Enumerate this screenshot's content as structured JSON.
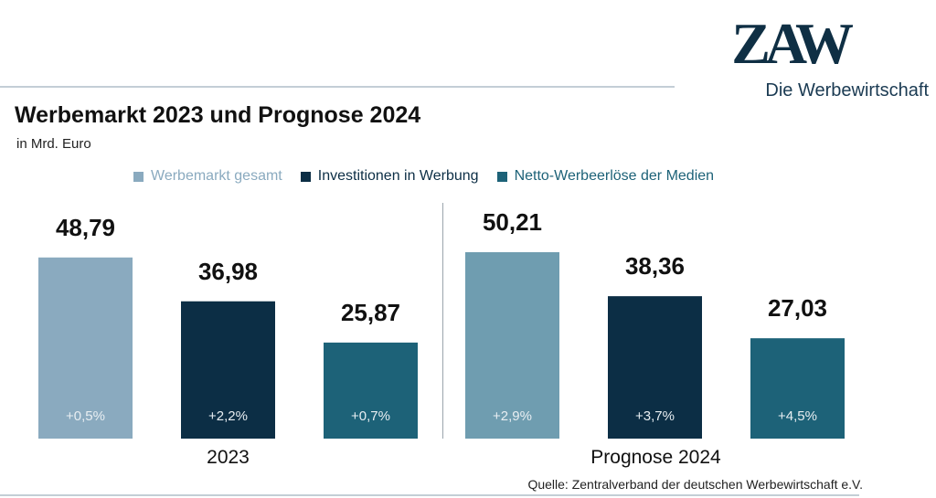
{
  "logo": {
    "text": "ZAW",
    "tagline": "Die Werbewirtschaft"
  },
  "header": {
    "title": "Werbemarkt 2023 und Prognose 2024",
    "subtitle": "in Mrd. Euro"
  },
  "colors": {
    "series_1": "#8aaabf",
    "series_2": "#0c2e45",
    "series_3": "#1d6278",
    "series_1_alt": "#6f9db0"
  },
  "source": "Quelle: Zentralverband der deutschen Werbewirtschaft e.V.",
  "chart_data": {
    "type": "bar",
    "title": "Werbemarkt 2023 und Prognose 2024",
    "subtitle": "in Mrd. Euro",
    "categories": [
      "2023",
      "Prognose 2024"
    ],
    "series": [
      {
        "name": "Werbemarkt gesamt",
        "values": [
          48.79,
          50.21
        ],
        "labels": [
          "48,79",
          "50,21"
        ],
        "changes": [
          "+0,5%",
          "+2,9%"
        ]
      },
      {
        "name": "Investitionen in Werbung",
        "values": [
          36.98,
          38.36
        ],
        "labels": [
          "36,98",
          "38,36"
        ],
        "changes": [
          "+2,2%",
          "+3,7%"
        ]
      },
      {
        "name": "Netto-Werbeerlöse der Medien",
        "values": [
          25.87,
          27.03
        ],
        "labels": [
          "25,87",
          "27,03"
        ],
        "changes": [
          "+0,7%",
          "+4,5%"
        ]
      }
    ],
    "legend_position": "top",
    "grid": false
  }
}
